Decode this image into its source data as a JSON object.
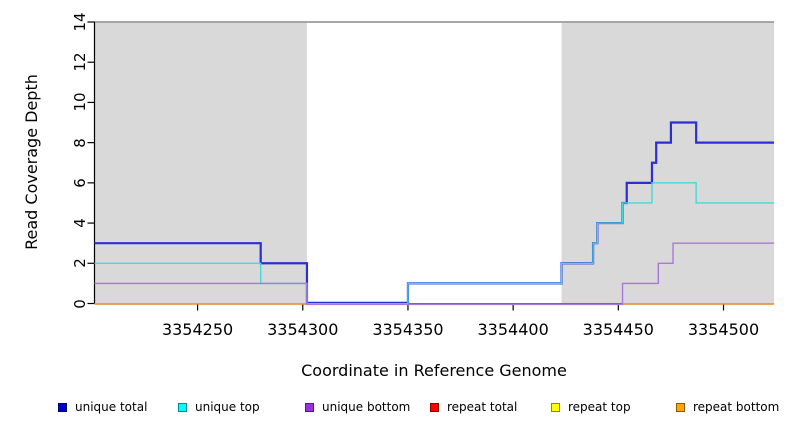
{
  "chart_data": {
    "type": "line",
    "subtype": "step-coverage",
    "title": "",
    "xlabel": "Coordinate in Reference Genome",
    "ylabel": "Read Coverage Depth",
    "xlim": [
      3354201,
      3354524
    ],
    "ylim": [
      0,
      14
    ],
    "x_ticks": [
      3354250,
      3354300,
      3354350,
      3354400,
      3354450,
      3354500
    ],
    "y_ticks": [
      0,
      2,
      4,
      6,
      8,
      10,
      12,
      14
    ],
    "grid": false,
    "legend_position": "bottom",
    "background_color": "#ffffff",
    "shaded_region_color": "#d9d9d9",
    "shaded_regions": [
      {
        "x0": 3354201,
        "x1": 3354302
      },
      {
        "x0": 3354423,
        "x1": 3354524
      }
    ],
    "series": [
      {
        "name": "unique total",
        "legend_color": "#0000cc",
        "line_color": "#2d2dd8",
        "line_width": 2.2,
        "steps": [
          [
            3354201,
            3
          ],
          [
            3354280,
            2
          ],
          [
            3354302,
            0
          ],
          [
            3354350,
            1
          ],
          [
            3354423,
            2
          ],
          [
            3354438,
            3
          ],
          [
            3354440,
            4
          ],
          [
            3354452,
            5
          ],
          [
            3354454,
            6
          ],
          [
            3354466,
            7
          ],
          [
            3354468,
            8
          ],
          [
            3354475,
            9
          ],
          [
            3354487,
            8
          ],
          [
            3354524,
            8
          ]
        ]
      },
      {
        "name": "unique top",
        "legend_color": "#00ffff",
        "line_color": "#45d9d9",
        "line_width": 1.4,
        "steps": [
          [
            3354201,
            2
          ],
          [
            3354280,
            1
          ],
          [
            3354302,
            0
          ],
          [
            3354350,
            1
          ],
          [
            3354423,
            2
          ],
          [
            3354438,
            3
          ],
          [
            3354440,
            4
          ],
          [
            3354452,
            5
          ],
          [
            3354466,
            6
          ],
          [
            3354487,
            5
          ],
          [
            3354524,
            5
          ]
        ]
      },
      {
        "name": "unique bottom",
        "legend_color": "#9b30e0",
        "line_color": "#a878dc",
        "line_width": 1.4,
        "steps": [
          [
            3354201,
            1
          ],
          [
            3354302,
            0
          ],
          [
            3354452,
            1
          ],
          [
            3354469,
            2
          ],
          [
            3354476,
            3
          ],
          [
            3354524,
            3
          ]
        ]
      },
      {
        "name": "repeat total",
        "legend_color": "#ff0000",
        "line_color": "#cc4265",
        "line_width": 1.4,
        "steps": [
          [
            3354201,
            0
          ],
          [
            3354524,
            0
          ]
        ]
      },
      {
        "name": "repeat top",
        "legend_color": "#ffff00",
        "line_color": "#e6c800",
        "line_width": 1.2,
        "steps": [
          [
            3354201,
            0
          ],
          [
            3354524,
            0
          ]
        ]
      },
      {
        "name": "repeat bottom",
        "legend_color": "#ffa500",
        "line_color": "#ff9d1e",
        "line_width": 1.6,
        "segments": [
          [
            [
              3354201,
              0
            ],
            [
              3354302,
              0
            ]
          ],
          [
            [
              3354452,
              0
            ],
            [
              3354524,
              0
            ]
          ]
        ]
      }
    ]
  }
}
